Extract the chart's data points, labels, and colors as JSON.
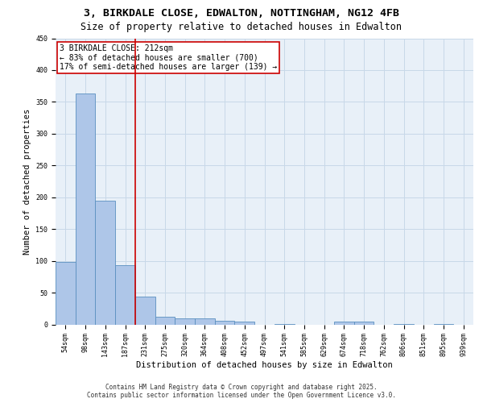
{
  "title_line1": "3, BIRKDALE CLOSE, EDWALTON, NOTTINGHAM, NG12 4FB",
  "title_line2": "Size of property relative to detached houses in Edwalton",
  "xlabel": "Distribution of detached houses by size in Edwalton",
  "ylabel": "Number of detached properties",
  "categories": [
    "54sqm",
    "98sqm",
    "143sqm",
    "187sqm",
    "231sqm",
    "275sqm",
    "320sqm",
    "364sqm",
    "408sqm",
    "452sqm",
    "497sqm",
    "541sqm",
    "585sqm",
    "629sqm",
    "674sqm",
    "718sqm",
    "762sqm",
    "806sqm",
    "851sqm",
    "895sqm",
    "939sqm"
  ],
  "values": [
    98,
    363,
    195,
    93,
    44,
    12,
    9,
    9,
    6,
    5,
    0,
    1,
    0,
    0,
    4,
    5,
    0,
    1,
    0,
    1,
    0
  ],
  "bar_color": "#aec6e8",
  "bar_edge_color": "#5a8fc0",
  "grid_color": "#c8d8e8",
  "vline_x": 3.5,
  "vline_color": "#cc0000",
  "annotation_line1": "3 BIRKDALE CLOSE: 212sqm",
  "annotation_line2": "← 83% of detached houses are smaller (700)",
  "annotation_line3": "17% of semi-detached houses are larger (139) →",
  "annotation_box_color": "#cc0000",
  "ylim": [
    0,
    450
  ],
  "yticks": [
    0,
    50,
    100,
    150,
    200,
    250,
    300,
    350,
    400,
    450
  ],
  "bg_color": "#e8f0f8",
  "footer_line1": "Contains HM Land Registry data © Crown copyright and database right 2025.",
  "footer_line2": "Contains public sector information licensed under the Open Government Licence v3.0.",
  "title_fontsize": 9.5,
  "subtitle_fontsize": 8.5,
  "tick_fontsize": 6,
  "label_fontsize": 7.5,
  "annotation_fontsize": 7,
  "footer_fontsize": 5.5
}
